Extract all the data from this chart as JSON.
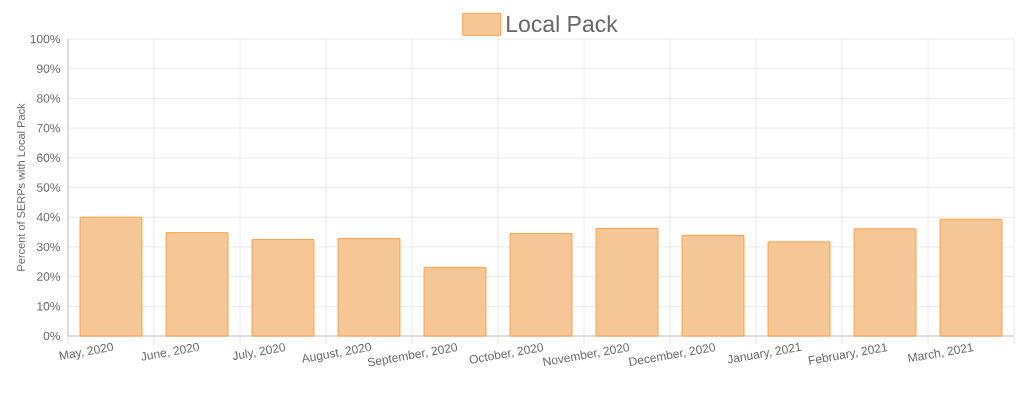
{
  "chart_data": {
    "type": "bar",
    "categories": [
      "May, 2020",
      "June, 2020",
      "July, 2020",
      "August, 2020",
      "September, 2020",
      "October, 2020",
      "November, 2020",
      "December, 2020",
      "January, 2021",
      "February, 2021",
      "March, 2021"
    ],
    "series": [
      {
        "name": "Local Pack",
        "color": "#f5c797",
        "values": [
          40,
          34.8,
          32.5,
          32.8,
          23.1,
          34.5,
          36.2,
          33.9,
          31.7,
          36.1,
          39.3
        ]
      }
    ],
    "ylabel": "Percent of SERPs with Local Pack",
    "ylim": [
      0,
      100
    ],
    "yticks": [
      {
        "value": 0,
        "label": "0%"
      },
      {
        "value": 10,
        "label": "10%"
      },
      {
        "value": 20,
        "label": "20%"
      },
      {
        "value": 30,
        "label": "30%"
      },
      {
        "value": 40,
        "label": "40%"
      },
      {
        "value": 50,
        "label": "50%"
      },
      {
        "value": 60,
        "label": "60%"
      },
      {
        "value": 70,
        "label": "70%"
      },
      {
        "value": 80,
        "label": "80%"
      },
      {
        "value": 90,
        "label": "90%"
      },
      {
        "value": 100,
        "label": "100%"
      }
    ],
    "grid": true,
    "legend": "top"
  }
}
